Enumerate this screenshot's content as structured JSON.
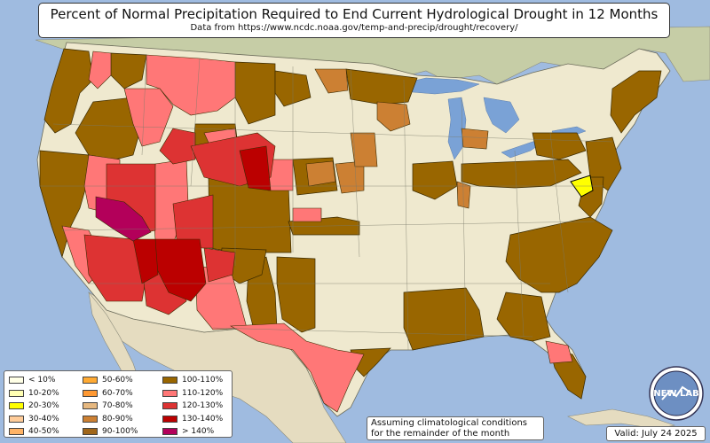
{
  "title": "Percent of Normal Precipitation Required to End Current Hydrological Drought in 12 Months",
  "subtitle": "Data from https://www.ncdc.noaa.gov/temp-and-precip/drought/recovery/",
  "legend": {
    "items": [
      {
        "label": "< 10%",
        "color": "#ffffe6"
      },
      {
        "label": "10-20%",
        "color": "#ffffb3"
      },
      {
        "label": "20-30%",
        "color": "#ffff00"
      },
      {
        "label": "30-40%",
        "color": "#ffcc99"
      },
      {
        "label": "40-50%",
        "color": "#ffb366"
      },
      {
        "label": "50-60%",
        "color": "#ffaa33"
      },
      {
        "label": "60-70%",
        "color": "#ff9933"
      },
      {
        "label": "70-80%",
        "color": "#e6b880"
      },
      {
        "label": "80-90%",
        "color": "#cc8033"
      },
      {
        "label": "90-100%",
        "color": "#a0661a"
      },
      {
        "label": "100-110%",
        "color": "#996600"
      },
      {
        "label": "110-120%",
        "color": "#ff7777"
      },
      {
        "label": "120-130%",
        "color": "#dd3333"
      },
      {
        "label": "130-140%",
        "color": "#bb0000"
      },
      {
        "label": "> 140%",
        "color": "#b3005a"
      }
    ]
  },
  "note": "Assuming climatological conditions for the remainder of the month",
  "valid": "Valid: July 24 2025",
  "logo_text": "NEW LAB",
  "colors": {
    "ocean": "#9fbbe0",
    "land": "#efe9cf",
    "canada": "#c6cda6",
    "mexico": "#e5dcc0",
    "lake": "#7aa2d6"
  }
}
